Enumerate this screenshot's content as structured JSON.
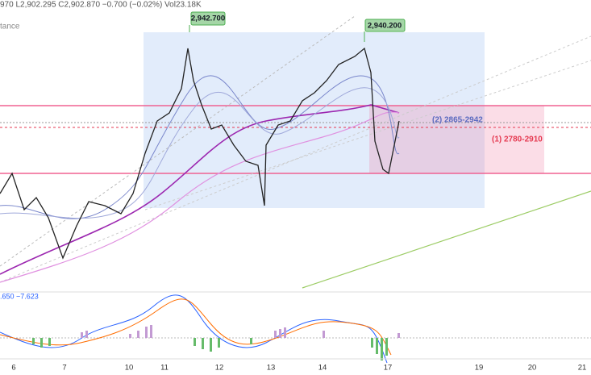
{
  "header": {
    "ohlc": "970 L2,902.295 C2,902.870 −0.700 (−0.02%) Vol23.18K",
    "indicator": "tance",
    "macd": ".650  −7.623"
  },
  "price_tags": [
    "2,942.700",
    "2,940.200"
  ],
  "zones": [
    "(2) 2865-2942",
    "(1) 2780-2910"
  ],
  "x_axis": [
    "6",
    "7",
    "10",
    "11",
    "12",
    "13",
    "14",
    "17",
    "19",
    "20",
    "21"
  ]
}
